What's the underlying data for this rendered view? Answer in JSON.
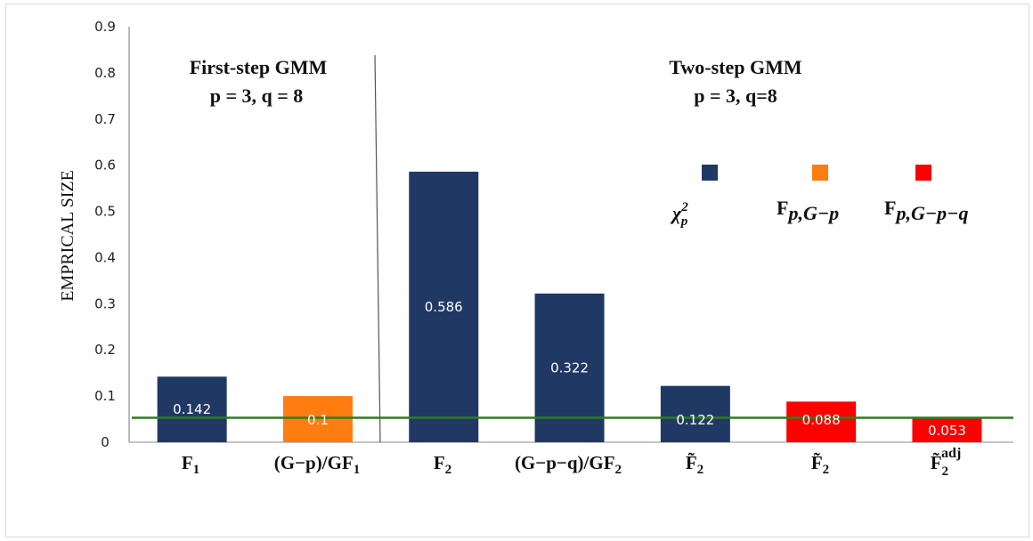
{
  "chart_data": {
    "type": "bar",
    "ylabel": "EMPRICAL SIZE",
    "ylim": [
      0,
      0.9
    ],
    "yticks": [
      "0",
      "0.1",
      "0.2",
      "0.3",
      "0.4",
      "0.5",
      "0.6",
      "0.7",
      "0.8",
      "0.9"
    ],
    "categories": [
      "F1",
      "(G−p)/GF1",
      "F2",
      "(G−p−q)/GF2",
      "F̃2",
      "F̃2",
      "F̃2 adj"
    ],
    "values": [
      0.142,
      0.1,
      0.586,
      0.322,
      0.122,
      0.088,
      0.053
    ],
    "value_labels": [
      "0.142",
      "0.1",
      "0.586",
      "0.322",
      "0.122",
      "0.088",
      "0.053"
    ],
    "bar_series": [
      0,
      1,
      0,
      0,
      0,
      2,
      2
    ],
    "series_colors": [
      "#203864",
      "#ff7c10",
      "#ff0000"
    ],
    "reference_line": {
      "value": 0.053,
      "color": "#2e7d1e"
    },
    "panels": [
      {
        "title_line1": "First-step GMM",
        "title_line2": "p = 3, q = 8"
      },
      {
        "title_line1": "Two-step GMM",
        "title_line2": "p = 3, q=8"
      }
    ],
    "legend": {
      "placement": "top-right",
      "entries": [
        {
          "label": "χ",
          "sup": "2",
          "sub": "p",
          "color": "#203864"
        },
        {
          "label": "F",
          "sub": "p,G−p",
          "color": "#ff7c10"
        },
        {
          "label": "F",
          "sub": "p,G−p−q",
          "color": "#ff0000"
        }
      ]
    },
    "grid": false
  }
}
